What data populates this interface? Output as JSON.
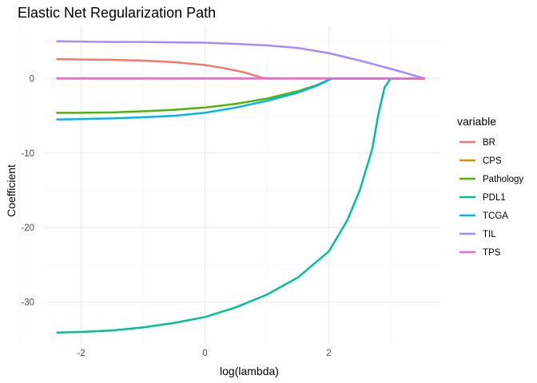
{
  "chart_data": {
    "type": "line",
    "title": "Elastic Net Regularization Path",
    "xlabel": "log(lambda)",
    "ylabel": "Coefficient",
    "xlim": [
      -2.6,
      3.8
    ],
    "ylim": [
      -35.5,
      7.0
    ],
    "x_ticks": [
      -2,
      0,
      2
    ],
    "x_minor_ticks": [
      -3,
      -1,
      1,
      3
    ],
    "y_ticks": [
      -30,
      -20,
      -10,
      0
    ],
    "y_minor_ticks": [
      -25,
      -15,
      -5,
      5
    ],
    "grid": true,
    "legend": {
      "title": "variable",
      "position": "right"
    },
    "series": [
      {
        "name": "BR",
        "color": "#F8766D",
        "x": [
          -2.4,
          -2.0,
          -1.5,
          -1.0,
          -0.5,
          0.0,
          0.3,
          0.6,
          0.8,
          0.95,
          1.0,
          2.0,
          3.0,
          3.55
        ],
        "y": [
          2.6,
          2.55,
          2.5,
          2.4,
          2.2,
          1.8,
          1.4,
          0.9,
          0.4,
          0.05,
          0,
          0,
          0,
          0
        ]
      },
      {
        "name": "CPS",
        "color": "#C49A00",
        "x": [
          -2.4,
          3.55
        ],
        "y": [
          0,
          0
        ]
      },
      {
        "name": "Pathology",
        "color": "#53B400",
        "x": [
          -2.4,
          -2.0,
          -1.5,
          -1.0,
          -0.5,
          0.0,
          0.5,
          1.0,
          1.5,
          1.8,
          2.05,
          3.0,
          3.55
        ],
        "y": [
          -4.6,
          -4.6,
          -4.55,
          -4.4,
          -4.2,
          -3.9,
          -3.4,
          -2.7,
          -1.7,
          -0.9,
          0,
          0,
          0
        ]
      },
      {
        "name": "PDL1",
        "color": "#00C094",
        "x": [
          -2.4,
          -2.0,
          -1.5,
          -1.0,
          -0.5,
          0.0,
          0.5,
          1.0,
          1.5,
          2.0,
          2.3,
          2.5,
          2.7,
          2.8,
          2.9,
          3.0,
          3.55
        ],
        "y": [
          -34.1,
          -34.0,
          -33.8,
          -33.4,
          -32.8,
          -32.0,
          -30.7,
          -29.0,
          -26.7,
          -23.2,
          -19.0,
          -15.0,
          -9.5,
          -4.8,
          -1.2,
          0,
          0
        ]
      },
      {
        "name": "TCGA",
        "color": "#00B6EB",
        "x": [
          -2.4,
          -2.0,
          -1.5,
          -1.0,
          -0.5,
          0.0,
          0.5,
          1.0,
          1.5,
          1.8,
          2.05,
          3.0,
          3.55
        ],
        "y": [
          -5.5,
          -5.45,
          -5.35,
          -5.2,
          -5.0,
          -4.6,
          -3.9,
          -3.0,
          -1.9,
          -1.0,
          0,
          0,
          0
        ]
      },
      {
        "name": "TIL",
        "color": "#A58AFF",
        "x": [
          -2.4,
          -2.0,
          -1.5,
          -1.0,
          -0.5,
          0.0,
          0.5,
          1.0,
          1.5,
          2.0,
          2.5,
          3.0,
          3.55
        ],
        "y": [
          5.0,
          4.95,
          4.9,
          4.9,
          4.85,
          4.8,
          4.65,
          4.45,
          4.1,
          3.4,
          2.4,
          1.3,
          0
        ]
      },
      {
        "name": "TPS",
        "color": "#FB61D7",
        "x": [
          -2.4,
          3.55
        ],
        "y": [
          0,
          0
        ]
      }
    ]
  }
}
